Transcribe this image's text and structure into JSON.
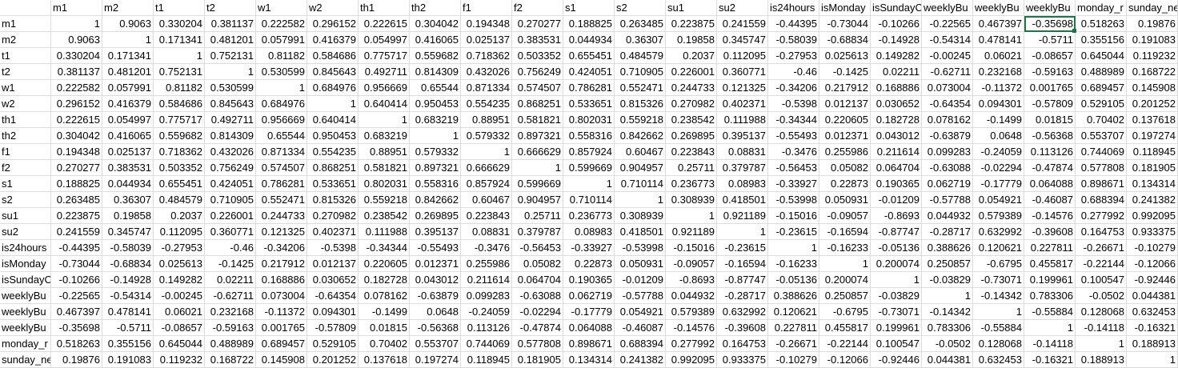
{
  "columns": [
    "m1",
    "m2",
    "t1",
    "t2",
    "w1",
    "w2",
    "th1",
    "th2",
    "f1",
    "f2",
    "s1",
    "s2",
    "su1",
    "su2",
    "is24hours",
    "isMonday",
    "isSundayC",
    "weeklyBu",
    "weeklyBu",
    "weeklyBu",
    "monday_r",
    "sunday_ne"
  ],
  "rows": [
    {
      "label": "m1",
      "values": [
        "1",
        "0.9063",
        "0.330204",
        "0.381137",
        "0.222582",
        "0.296152",
        "0.222615",
        "0.304042",
        "0.194348",
        "0.270277",
        "0.188825",
        "0.263485",
        "0.223875",
        "0.241559",
        "-0.44395",
        "-0.73044",
        "-0.10266",
        "-0.22565",
        "0.467397",
        "-0.35698",
        "0.518263",
        "0.19876"
      ]
    },
    {
      "label": "m2",
      "values": [
        "0.9063",
        "1",
        "0.171341",
        "0.481201",
        "0.057991",
        "0.416379",
        "0.054997",
        "0.416065",
        "0.025137",
        "0.383531",
        "0.044934",
        "0.36307",
        "0.19858",
        "0.345747",
        "-0.58039",
        "-0.68834",
        "-0.14928",
        "-0.54314",
        "0.478141",
        "-0.5711",
        "0.355156",
        "0.191083"
      ]
    },
    {
      "label": "t1",
      "values": [
        "0.330204",
        "0.171341",
        "1",
        "0.752131",
        "0.81182",
        "0.584686",
        "0.775717",
        "0.559682",
        "0.718362",
        "0.503352",
        "0.655451",
        "0.484579",
        "0.2037",
        "0.112095",
        "-0.27953",
        "0.025613",
        "0.149282",
        "-0.00245",
        "0.06021",
        "-0.08657",
        "0.645044",
        "0.119232"
      ]
    },
    {
      "label": "t2",
      "values": [
        "0.381137",
        "0.481201",
        "0.752131",
        "1",
        "0.530599",
        "0.845643",
        "0.492711",
        "0.814309",
        "0.432026",
        "0.756249",
        "0.424051",
        "0.710905",
        "0.226001",
        "0.360771",
        "-0.46",
        "-0.1425",
        "0.02211",
        "-0.62711",
        "0.232168",
        "-0.59163",
        "0.488989",
        "0.168722"
      ]
    },
    {
      "label": "w1",
      "values": [
        "0.222582",
        "0.057991",
        "0.81182",
        "0.530599",
        "1",
        "0.684976",
        "0.956669",
        "0.65544",
        "0.871334",
        "0.574507",
        "0.786281",
        "0.552471",
        "0.244733",
        "0.121325",
        "-0.34206",
        "0.217912",
        "0.168886",
        "0.073004",
        "-0.11372",
        "0.001765",
        "0.689457",
        "0.145908"
      ]
    },
    {
      "label": "w2",
      "values": [
        "0.296152",
        "0.416379",
        "0.584686",
        "0.845643",
        "0.684976",
        "1",
        "0.640414",
        "0.950453",
        "0.554235",
        "0.868251",
        "0.533651",
        "0.815326",
        "0.270982",
        "0.402371",
        "-0.5398",
        "0.012137",
        "0.030652",
        "-0.64354",
        "0.094301",
        "-0.57809",
        "0.529105",
        "0.201252"
      ]
    },
    {
      "label": "th1",
      "values": [
        "0.222615",
        "0.054997",
        "0.775717",
        "0.492711",
        "0.956669",
        "0.640414",
        "1",
        "0.683219",
        "0.88951",
        "0.581821",
        "0.802031",
        "0.559218",
        "0.238542",
        "0.111988",
        "-0.34344",
        "0.220605",
        "0.182728",
        "0.078162",
        "-0.1499",
        "0.01815",
        "0.70402",
        "0.137618"
      ]
    },
    {
      "label": "th2",
      "values": [
        "0.304042",
        "0.416065",
        "0.559682",
        "0.814309",
        "0.65544",
        "0.950453",
        "0.683219",
        "1",
        "0.579332",
        "0.897321",
        "0.558316",
        "0.842662",
        "0.269895",
        "0.395137",
        "-0.55493",
        "0.012371",
        "0.043012",
        "-0.63879",
        "0.0648",
        "-0.56368",
        "0.553707",
        "0.197274"
      ]
    },
    {
      "label": "f1",
      "values": [
        "0.194348",
        "0.025137",
        "0.718362",
        "0.432026",
        "0.871334",
        "0.554235",
        "0.88951",
        "0.579332",
        "1",
        "0.666629",
        "0.857924",
        "0.60467",
        "0.223843",
        "0.08831",
        "-0.3476",
        "0.255986",
        "0.211614",
        "0.099283",
        "-0.24059",
        "0.113126",
        "0.744069",
        "0.118945"
      ]
    },
    {
      "label": "f2",
      "values": [
        "0.270277",
        "0.383531",
        "0.503352",
        "0.756249",
        "0.574507",
        "0.868251",
        "0.581821",
        "0.897321",
        "0.666629",
        "1",
        "0.599669",
        "0.904957",
        "0.25711",
        "0.379787",
        "-0.56453",
        "0.05082",
        "0.064704",
        "-0.63088",
        "-0.02294",
        "-0.47874",
        "0.577808",
        "0.181905"
      ]
    },
    {
      "label": "s1",
      "values": [
        "0.188825",
        "0.044934",
        "0.655451",
        "0.424051",
        "0.786281",
        "0.533651",
        "0.802031",
        "0.558316",
        "0.857924",
        "0.599669",
        "1",
        "0.710114",
        "0.236773",
        "0.08983",
        "-0.33927",
        "0.22873",
        "0.190365",
        "0.062719",
        "-0.17779",
        "0.064088",
        "0.898671",
        "0.134314"
      ]
    },
    {
      "label": "s2",
      "values": [
        "0.263485",
        "0.36307",
        "0.484579",
        "0.710905",
        "0.552471",
        "0.815326",
        "0.559218",
        "0.842662",
        "0.60467",
        "0.904957",
        "0.710114",
        "1",
        "0.308939",
        "0.418501",
        "-0.53998",
        "0.050931",
        "-0.01209",
        "-0.57788",
        "0.054921",
        "-0.46087",
        "0.688394",
        "0.241382"
      ]
    },
    {
      "label": "su1",
      "values": [
        "0.223875",
        "0.19858",
        "0.2037",
        "0.226001",
        "0.244733",
        "0.270982",
        "0.238542",
        "0.269895",
        "0.223843",
        "0.25711",
        "0.236773",
        "0.308939",
        "1",
        "0.921189",
        "-0.15016",
        "-0.09057",
        "-0.8693",
        "0.044932",
        "0.579389",
        "-0.14576",
        "0.277992",
        "0.992095"
      ]
    },
    {
      "label": "su2",
      "values": [
        "0.241559",
        "0.345747",
        "0.112095",
        "0.360771",
        "0.121325",
        "0.402371",
        "0.111988",
        "0.395137",
        "0.08831",
        "0.379787",
        "0.08983",
        "0.418501",
        "0.921189",
        "1",
        "-0.23615",
        "-0.16594",
        "-0.87747",
        "-0.28717",
        "0.632992",
        "-0.39608",
        "0.164753",
        "0.933375"
      ]
    },
    {
      "label": "is24hours",
      "values": [
        "-0.44395",
        "-0.58039",
        "-0.27953",
        "-0.46",
        "-0.34206",
        "-0.5398",
        "-0.34344",
        "-0.55493",
        "-0.3476",
        "-0.56453",
        "-0.33927",
        "-0.53998",
        "-0.15016",
        "-0.23615",
        "1",
        "-0.16233",
        "-0.05136",
        "0.388626",
        "0.120621",
        "0.227811",
        "-0.26671",
        "-0.10279"
      ]
    },
    {
      "label": "isMonday",
      "values": [
        "-0.73044",
        "-0.68834",
        "0.025613",
        "-0.1425",
        "0.217912",
        "0.012137",
        "0.220605",
        "0.012371",
        "0.255986",
        "0.05082",
        "0.22873",
        "0.050931",
        "-0.09057",
        "-0.16594",
        "-0.16233",
        "1",
        "0.200074",
        "0.250857",
        "-0.6795",
        "0.455817",
        "-0.22144",
        "-0.12066"
      ]
    },
    {
      "label": "isSundayC",
      "values": [
        "-0.10266",
        "-0.14928",
        "0.149282",
        "0.02211",
        "0.168886",
        "0.030652",
        "0.182728",
        "0.043012",
        "0.211614",
        "0.064704",
        "0.190365",
        "-0.01209",
        "-0.8693",
        "-0.87747",
        "-0.05136",
        "0.200074",
        "1",
        "-0.03829",
        "-0.73071",
        "0.199961",
        "0.100547",
        "-0.92446"
      ]
    },
    {
      "label": "weeklyBu",
      "values": [
        "-0.22565",
        "-0.54314",
        "-0.00245",
        "-0.62711",
        "0.073004",
        "-0.64354",
        "0.078162",
        "-0.63879",
        "0.099283",
        "-0.63088",
        "0.062719",
        "-0.57788",
        "0.044932",
        "-0.28717",
        "0.388626",
        "0.250857",
        "-0.03829",
        "1",
        "-0.14342",
        "0.783306",
        "-0.0502",
        "0.044381"
      ]
    },
    {
      "label": "weeklyBu",
      "values": [
        "0.467397",
        "0.478141",
        "0.06021",
        "0.232168",
        "-0.11372",
        "0.094301",
        "-0.1499",
        "0.0648",
        "-0.24059",
        "-0.02294",
        "-0.17779",
        "0.054921",
        "0.579389",
        "0.632992",
        "0.120621",
        "-0.6795",
        "-0.73071",
        "-0.14342",
        "1",
        "-0.55884",
        "0.128068",
        "0.632453"
      ]
    },
    {
      "label": "weeklyBu",
      "values": [
        "-0.35698",
        "-0.5711",
        "-0.08657",
        "-0.59163",
        "0.001765",
        "-0.57809",
        "0.01815",
        "-0.56368",
        "0.113126",
        "-0.47874",
        "0.064088",
        "-0.46087",
        "-0.14576",
        "-0.39608",
        "0.227811",
        "0.455817",
        "0.199961",
        "0.783306",
        "-0.55884",
        "1",
        "-0.14118",
        "-0.16321"
      ]
    },
    {
      "label": "monday_r",
      "values": [
        "0.518263",
        "0.355156",
        "0.645044",
        "0.488989",
        "0.689457",
        "0.529105",
        "0.70402",
        "0.553707",
        "0.744069",
        "0.577808",
        "0.898671",
        "0.688394",
        "0.277992",
        "0.164753",
        "-0.26671",
        "-0.22144",
        "0.100547",
        "-0.0502",
        "0.128068",
        "-0.14118",
        "1",
        "0.188913"
      ]
    },
    {
      "label": "sunday_ne",
      "values": [
        "0.19876",
        "0.191083",
        "0.119232",
        "0.168722",
        "0.145908",
        "0.201252",
        "0.137618",
        "0.197274",
        "0.118945",
        "0.181905",
        "0.134314",
        "0.241382",
        "0.992095",
        "0.933375",
        "-0.10279",
        "-0.12066",
        "-0.92446",
        "0.044381",
        "0.632453",
        "-0.16321",
        "0.188913",
        "1"
      ]
    }
  ],
  "selection": {
    "row": 0,
    "col": 19
  },
  "colors": {
    "selection": "#217346",
    "gridline": "#dadcdf"
  }
}
